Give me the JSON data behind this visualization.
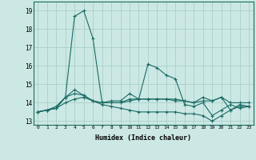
{
  "xlabel": "Humidex (Indice chaleur)",
  "xlim": [
    -0.5,
    23.5
  ],
  "ylim": [
    12.8,
    19.5
  ],
  "yticks": [
    13,
    14,
    15,
    16,
    17,
    18,
    19
  ],
  "xticks": [
    0,
    1,
    2,
    3,
    4,
    5,
    6,
    7,
    8,
    9,
    10,
    11,
    12,
    13,
    14,
    15,
    16,
    17,
    18,
    19,
    20,
    21,
    22,
    23
  ],
  "background_color": "#cce8e4",
  "grid_color": "#aacfca",
  "line_color": "#1a6b65",
  "series": [
    {
      "x": [
        0,
        1,
        2,
        3,
        4,
        5,
        6,
        7,
        8,
        9,
        10,
        11,
        12,
        13,
        14,
        15,
        16,
        17,
        18,
        19,
        20,
        21,
        22,
        23
      ],
      "y": [
        13.5,
        13.6,
        13.7,
        14.3,
        18.7,
        19.0,
        17.5,
        14.0,
        14.1,
        14.1,
        14.5,
        14.2,
        16.1,
        15.9,
        15.5,
        15.3,
        13.9,
        13.8,
        14.0,
        13.3,
        13.6,
        13.9,
        13.7,
        13.8
      ]
    },
    {
      "x": [
        0,
        1,
        2,
        3,
        4,
        5,
        6,
        7,
        8,
        9,
        10,
        11,
        12,
        13,
        14,
        15,
        16,
        17,
        18,
        19,
        20,
        21,
        22,
        23
      ],
      "y": [
        13.5,
        13.6,
        13.8,
        14.3,
        14.7,
        14.4,
        14.1,
        14.0,
        14.0,
        14.0,
        14.2,
        14.2,
        14.2,
        14.2,
        14.2,
        14.2,
        14.1,
        14.0,
        14.1,
        14.1,
        14.3,
        14.0,
        14.0,
        14.0
      ]
    },
    {
      "x": [
        0,
        1,
        2,
        3,
        4,
        5,
        6,
        7,
        8,
        9,
        10,
        11,
        12,
        13,
        14,
        15,
        16,
        17,
        18,
        19,
        20,
        21,
        22,
        23
      ],
      "y": [
        13.5,
        13.6,
        13.7,
        14.0,
        14.2,
        14.3,
        14.1,
        13.9,
        13.8,
        13.7,
        13.6,
        13.5,
        13.5,
        13.5,
        13.5,
        13.5,
        13.4,
        13.4,
        13.3,
        13.0,
        13.3,
        13.6,
        13.8,
        13.8
      ]
    },
    {
      "x": [
        0,
        1,
        2,
        3,
        4,
        5,
        6,
        7,
        8,
        9,
        10,
        11,
        12,
        13,
        14,
        15,
        16,
        17,
        18,
        19,
        20,
        21,
        22,
        23
      ],
      "y": [
        13.5,
        13.6,
        13.7,
        14.3,
        14.5,
        14.4,
        14.1,
        14.0,
        14.0,
        14.0,
        14.1,
        14.2,
        14.2,
        14.2,
        14.2,
        14.1,
        14.1,
        14.0,
        14.3,
        14.1,
        14.3,
        13.6,
        13.9,
        13.8
      ]
    }
  ]
}
